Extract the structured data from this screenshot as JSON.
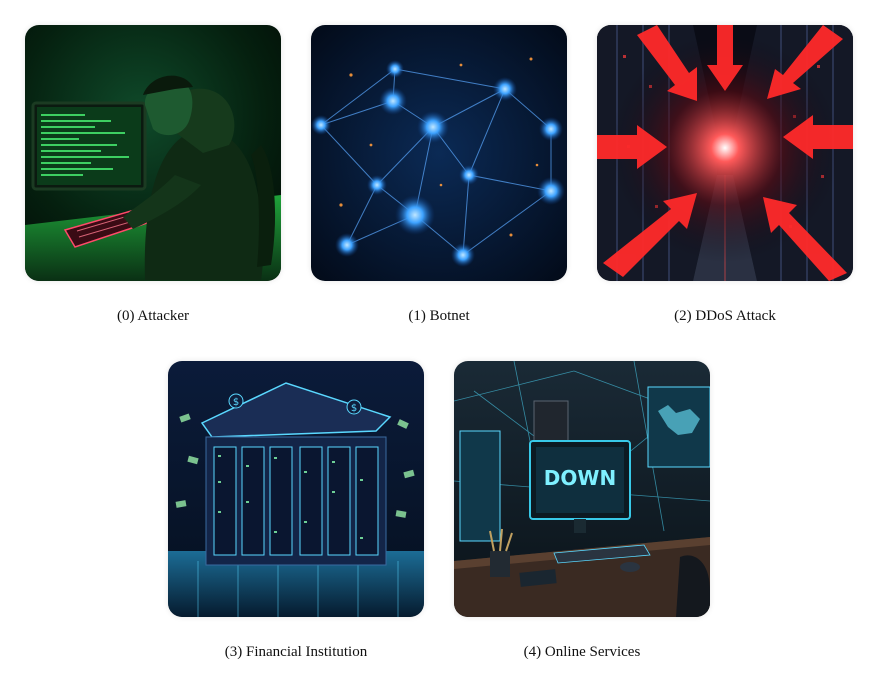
{
  "panels": [
    {
      "caption": "(0) Attacker",
      "image": "hacker-at-computer-illustration"
    },
    {
      "caption": "(1) Botnet",
      "image": "network-nodes-illustration"
    },
    {
      "caption": "(2) DDoS Attack",
      "image": "server-corridor-red-arrows-illustration"
    },
    {
      "caption": "(3) Financial Institution",
      "image": "bank-server-building-illustration"
    },
    {
      "caption": "(4) Online Services",
      "image": "office-monitor-down-illustration"
    }
  ],
  "screen_text": {
    "down_banner": "DOWN",
    "bank_symbol": "$"
  },
  "colors": {
    "hacker_green": "#27c24a",
    "botnet_blue": "#2f8bff",
    "ddos_red": "#ff2a2a",
    "bank_cyan": "#5ad8ff",
    "office_teal": "#38c9e8"
  }
}
